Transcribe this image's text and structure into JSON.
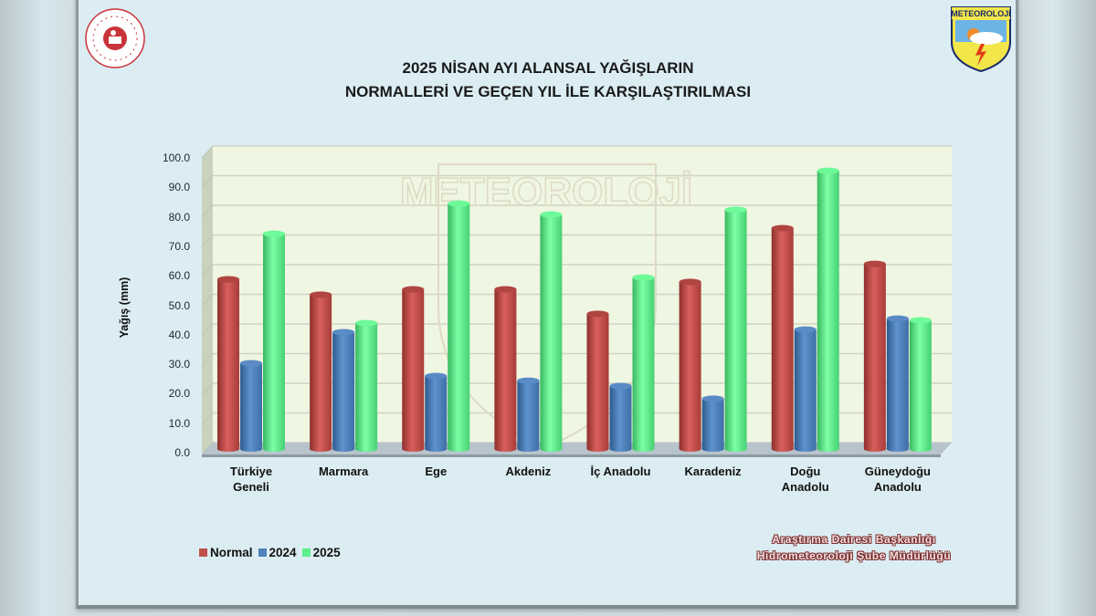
{
  "title": {
    "line1": "2025 NİSAN AYI ALANSAL YAĞIŞLARIN",
    "line2": "NORMALLERİ VE GEÇEN YIL İLE KARŞILAŞTIRILMASI"
  },
  "logos": {
    "left": "ministry-seal-icon",
    "right": "meteoroloji-shield-icon",
    "right_text": "METEOROLOJİ",
    "watermark_text": "METEOROLOJİ"
  },
  "credit": {
    "line1": "Araştırma Dairesi Başkanlığı",
    "line2": "Hidrometeoroloji Şube Müdürlüğü"
  },
  "colors": {
    "Normal": "#c0504d",
    "2024": "#4f81bd",
    "2025": "#5df08a",
    "plot_bg": "#eff6e2",
    "slide_bg": "#dbedf3"
  },
  "chart_data": {
    "type": "bar",
    "title": "2025 NİSAN AYI ALANSAL YAĞIŞLARIN NORMALLERİ VE GEÇEN YIL İLE KARŞILAŞTIRILMASI",
    "xlabel": "",
    "ylabel": "Yağış (mm)",
    "ylim": [
      0,
      100
    ],
    "yticks": [
      "0.0",
      "10.0",
      "20.0",
      "30.0",
      "40.0",
      "50.0",
      "60.0",
      "70.0",
      "80.0",
      "90.0",
      "100.0"
    ],
    "grid": true,
    "legend_position": "bottom-left",
    "categories": [
      "Türkiye Geneli",
      "Marmara",
      "Ege",
      "Akdeniz",
      "İç Anadolu",
      "Karadeniz",
      "Doğu Anadolu",
      "Güneydoğu Anadolu"
    ],
    "category_labels": [
      "Türkiye\nGeneli",
      "Marmara",
      "Ege",
      "Akdeniz",
      "İç Anadolu",
      "Karadeniz",
      "Doğu\nAnadolu",
      "Güneydoğu\nAnadolu"
    ],
    "series": [
      {
        "name": "Normal",
        "values": [
          57.1,
          51.9,
          53.7,
          53.7,
          45.4,
          56.2,
          74.4,
          62.3
        ]
      },
      {
        "name": "2024",
        "values": [
          28.7,
          39.2,
          24.4,
          22.8,
          21.0,
          16.7,
          40.1,
          43.8
        ]
      },
      {
        "name": "2025",
        "values": [
          72.5,
          42.3,
          82.7,
          79.0,
          57.7,
          80.6,
          93.8,
          43.2
        ]
      }
    ]
  }
}
